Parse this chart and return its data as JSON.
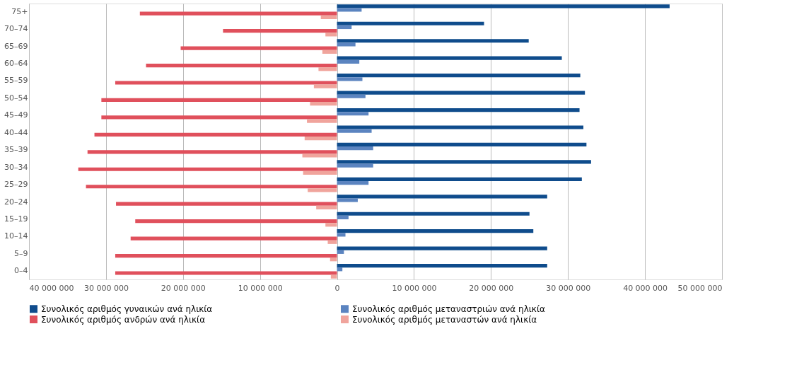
{
  "chart_data": {
    "type": "bar",
    "orientation": "horizontal",
    "grid": "x",
    "legend": "bottom",
    "categories": [
      "75+",
      "70–74",
      "65–69",
      "60–64",
      "55–59",
      "50–54",
      "45–49",
      "40–44",
      "35–39",
      "30–34",
      "25–29",
      "20–24",
      "15–19",
      "10–14",
      "5–9",
      "0–4"
    ],
    "series": [
      {
        "name": "Συνολικός αριθμός γυναικών ανά ηλικία",
        "color": "#0f4c8c",
        "values": [
          43200000,
          19100000,
          24900000,
          29200000,
          31600000,
          32200000,
          31500000,
          32000000,
          32400000,
          33000000,
          31800000,
          27300000,
          25000000,
          25500000,
          27300000,
          27300000
        ]
      },
      {
        "name": "Συνολικός αριθμός μεταναστριών ανά ηλικία",
        "color": "#5b84c0",
        "values": [
          3200000,
          1900000,
          2400000,
          2900000,
          3300000,
          3700000,
          4100000,
          4500000,
          4700000,
          4700000,
          4100000,
          2700000,
          1500000,
          1100000,
          900000,
          700000
        ]
      },
      {
        "name": "Συνολικός αριθμός ανδρών ανά ηλικία",
        "color": "#e0505c",
        "values": [
          -25600000,
          -14800000,
          -20300000,
          -24800000,
          -28800000,
          -30600000,
          -30600000,
          -31500000,
          -32400000,
          -33600000,
          -32600000,
          -28700000,
          -26200000,
          -26800000,
          -28800000,
          -28800000
        ]
      },
      {
        "name": "Συνολικός αριθμός μεταναστών ανά ηλικία",
        "color": "#f0a49c",
        "values": [
          -2100000,
          -1500000,
          -1900000,
          -2400000,
          -3000000,
          -3500000,
          -3900000,
          -4200000,
          -4500000,
          -4400000,
          -3800000,
          -2700000,
          -1500000,
          -1200000,
          -900000,
          -800000
        ]
      }
    ],
    "xlim": [
      -40000000,
      50000000
    ],
    "xticks": [
      {
        "value": -40000000,
        "label": "40 000 000"
      },
      {
        "value": -30000000,
        "label": "30 000 000"
      },
      {
        "value": -20000000,
        "label": "20 000 000"
      },
      {
        "value": -10000000,
        "label": "10 000 000"
      },
      0,
      {
        "value": 10000000,
        "label": "10 000 000"
      },
      {
        "value": 20000000,
        "label": "20 000 000"
      },
      {
        "value": 30000000,
        "label": "30 000 000"
      },
      {
        "value": 40000000,
        "label": "40 000 000"
      },
      {
        "value": 50000000,
        "label": "50 000 000"
      }
    ]
  }
}
